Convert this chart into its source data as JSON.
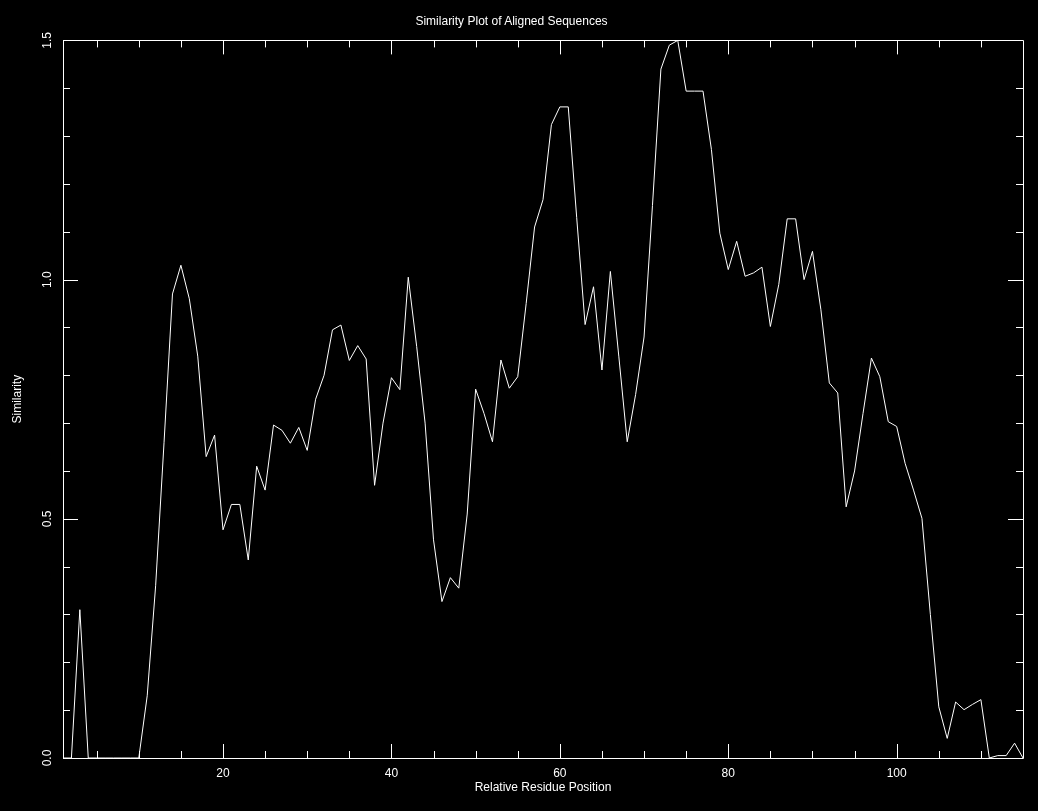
{
  "chart_data": {
    "type": "line",
    "title": "Similarity Plot of Aligned Sequences",
    "xlabel": "Relative Residue Position",
    "ylabel": "Similarity",
    "x": [
      1,
      2,
      3,
      4,
      5,
      6,
      7,
      8,
      9,
      10,
      11,
      12,
      13,
      14,
      15,
      16,
      17,
      18,
      19,
      20,
      21,
      22,
      23,
      24,
      25,
      26,
      27,
      28,
      29,
      30,
      31,
      32,
      33,
      34,
      35,
      36,
      37,
      38,
      39,
      40,
      41,
      42,
      43,
      44,
      45,
      46,
      47,
      48,
      49,
      50,
      51,
      52,
      53,
      54,
      55,
      56,
      57,
      58,
      59,
      60,
      61,
      62,
      63,
      64,
      65,
      66,
      67,
      68,
      69,
      70,
      71,
      72,
      73,
      74,
      75,
      76,
      77,
      78,
      79,
      80,
      81,
      82,
      83,
      84,
      85,
      86,
      87,
      88,
      89,
      90,
      91,
      92,
      93,
      94,
      95,
      96,
      97,
      98,
      99,
      100,
      101,
      102,
      103,
      104,
      105,
      106,
      107,
      108,
      109,
      110,
      111,
      112,
      113,
      114,
      115
    ],
    "values": [
      0,
      0,
      0.31,
      0,
      0,
      0,
      0,
      0,
      0,
      0,
      0.13,
      0.36,
      0.66,
      0.97,
      1.03,
      0.96,
      0.84,
      0.63,
      0.675,
      0.477,
      0.53,
      0.53,
      0.414,
      0.61,
      0.56,
      0.696,
      0.685,
      0.658,
      0.691,
      0.643,
      0.75,
      0.8,
      0.895,
      0.905,
      0.831,
      0.862,
      0.834,
      0.57,
      0.7,
      0.795,
      0.77,
      1.005,
      0.86,
      0.7,
      0.456,
      0.327,
      0.377,
      0.355,
      0.51,
      0.771,
      0.72,
      0.661,
      0.832,
      0.773,
      0.797,
      0.95,
      1.11,
      1.167,
      1.324,
      1.361,
      1.361,
      1.13,
      0.906,
      0.985,
      0.811,
      1.017,
      0.84,
      0.661,
      0.76,
      0.88,
      1.155,
      1.44,
      1.49,
      1.5,
      1.394,
      1.394,
      1.394,
      1.272,
      1.097,
      1.021,
      1.08,
      1.007,
      1.014,
      1.026,
      0.902,
      0.99,
      1.127,
      1.127,
      1.0,
      1.059,
      0.937,
      0.784,
      0.763,
      0.525,
      0.6,
      0.72,
      0.836,
      0.797,
      0.703,
      0.693,
      0.616,
      0.56,
      0.501,
      0.3,
      0.107,
      0.041,
      0.117,
      0.101,
      0.112,
      0.122,
      0,
      0.005,
      0.005,
      0.031,
      0
    ],
    "color": "#ffffff",
    "line_style": "solid",
    "xlim": [
      1,
      115
    ],
    "xticks": [
      {
        "value": 5,
        "label": null
      },
      {
        "value": 10,
        "label": null
      },
      {
        "value": 15,
        "label": null
      },
      20,
      {
        "value": 25,
        "label": null
      },
      {
        "value": 30,
        "label": null
      },
      {
        "value": 35,
        "label": null
      },
      40,
      {
        "value": 45,
        "label": null
      },
      {
        "value": 50,
        "label": null
      },
      {
        "value": 55,
        "label": null
      },
      60,
      {
        "value": 65,
        "label": null
      },
      {
        "value": 70,
        "label": null
      },
      {
        "value": 75,
        "label": null
      },
      80,
      {
        "value": 85,
        "label": null
      },
      {
        "value": 90,
        "label": null
      },
      {
        "value": 95,
        "label": null
      },
      100,
      {
        "value": 105,
        "label": null
      },
      {
        "value": 110,
        "label": null
      }
    ],
    "ylim": [
      0,
      1.5
    ],
    "yticks": [
      {
        "value": 0,
        "label": "0.0"
      },
      {
        "value": 0.1,
        "label": null
      },
      {
        "value": 0.2,
        "label": null
      },
      {
        "value": 0.3,
        "label": null
      },
      {
        "value": 0.4,
        "label": null
      },
      {
        "value": 0.5,
        "label": "0.5"
      },
      {
        "value": 0.6,
        "label": null
      },
      {
        "value": 0.7,
        "label": null
      },
      {
        "value": 0.8,
        "label": null
      },
      {
        "value": 0.9,
        "label": null
      },
      {
        "value": 1.0,
        "label": "1.0"
      },
      {
        "value": 1.1,
        "label": null
      },
      {
        "value": 1.2,
        "label": null
      },
      {
        "value": 1.3,
        "label": null
      },
      {
        "value": 1.4,
        "label": null
      },
      {
        "value": 1.5,
        "label": "1.5"
      }
    ]
  }
}
